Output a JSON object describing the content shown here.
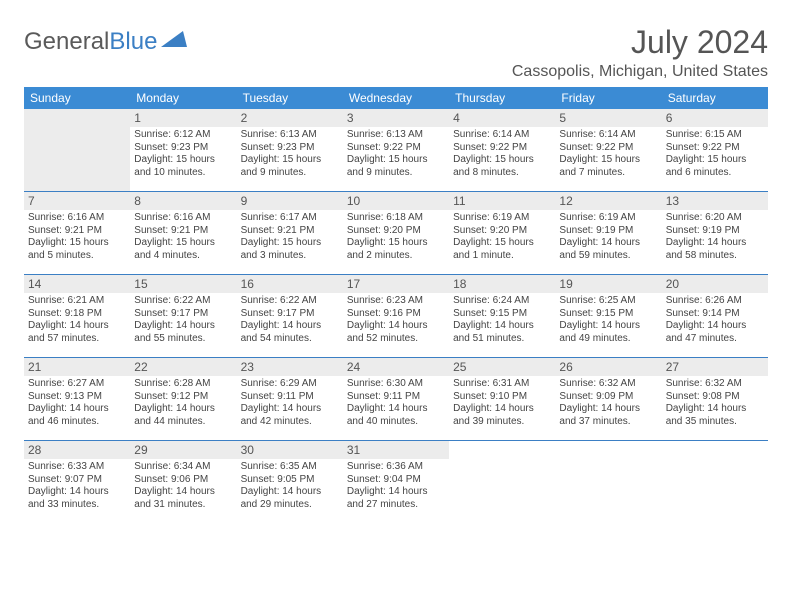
{
  "logo": {
    "word1": "General",
    "word2": "Blue"
  },
  "title": "July 2024",
  "location": "Cassopolis, Michigan, United States",
  "day_names": [
    "Sunday",
    "Monday",
    "Tuesday",
    "Wednesday",
    "Thursday",
    "Friday",
    "Saturday"
  ],
  "colors": {
    "header_bg": "#3b8bd4",
    "rule": "#3b7fc4",
    "daynum_bg": "#ececec",
    "text": "#444444"
  },
  "weeks": [
    [
      {
        "blank": true,
        "lead": true
      },
      {
        "day": "1",
        "sunrise": "Sunrise: 6:12 AM",
        "sunset": "Sunset: 9:23 PM",
        "daylight1": "Daylight: 15 hours",
        "daylight2": "and 10 minutes."
      },
      {
        "day": "2",
        "sunrise": "Sunrise: 6:13 AM",
        "sunset": "Sunset: 9:23 PM",
        "daylight1": "Daylight: 15 hours",
        "daylight2": "and 9 minutes."
      },
      {
        "day": "3",
        "sunrise": "Sunrise: 6:13 AM",
        "sunset": "Sunset: 9:22 PM",
        "daylight1": "Daylight: 15 hours",
        "daylight2": "and 9 minutes."
      },
      {
        "day": "4",
        "sunrise": "Sunrise: 6:14 AM",
        "sunset": "Sunset: 9:22 PM",
        "daylight1": "Daylight: 15 hours",
        "daylight2": "and 8 minutes."
      },
      {
        "day": "5",
        "sunrise": "Sunrise: 6:14 AM",
        "sunset": "Sunset: 9:22 PM",
        "daylight1": "Daylight: 15 hours",
        "daylight2": "and 7 minutes."
      },
      {
        "day": "6",
        "sunrise": "Sunrise: 6:15 AM",
        "sunset": "Sunset: 9:22 PM",
        "daylight1": "Daylight: 15 hours",
        "daylight2": "and 6 minutes."
      }
    ],
    [
      {
        "day": "7",
        "sunrise": "Sunrise: 6:16 AM",
        "sunset": "Sunset: 9:21 PM",
        "daylight1": "Daylight: 15 hours",
        "daylight2": "and 5 minutes."
      },
      {
        "day": "8",
        "sunrise": "Sunrise: 6:16 AM",
        "sunset": "Sunset: 9:21 PM",
        "daylight1": "Daylight: 15 hours",
        "daylight2": "and 4 minutes."
      },
      {
        "day": "9",
        "sunrise": "Sunrise: 6:17 AM",
        "sunset": "Sunset: 9:21 PM",
        "daylight1": "Daylight: 15 hours",
        "daylight2": "and 3 minutes."
      },
      {
        "day": "10",
        "sunrise": "Sunrise: 6:18 AM",
        "sunset": "Sunset: 9:20 PM",
        "daylight1": "Daylight: 15 hours",
        "daylight2": "and 2 minutes."
      },
      {
        "day": "11",
        "sunrise": "Sunrise: 6:19 AM",
        "sunset": "Sunset: 9:20 PM",
        "daylight1": "Daylight: 15 hours",
        "daylight2": "and 1 minute."
      },
      {
        "day": "12",
        "sunrise": "Sunrise: 6:19 AM",
        "sunset": "Sunset: 9:19 PM",
        "daylight1": "Daylight: 14 hours",
        "daylight2": "and 59 minutes."
      },
      {
        "day": "13",
        "sunrise": "Sunrise: 6:20 AM",
        "sunset": "Sunset: 9:19 PM",
        "daylight1": "Daylight: 14 hours",
        "daylight2": "and 58 minutes."
      }
    ],
    [
      {
        "day": "14",
        "sunrise": "Sunrise: 6:21 AM",
        "sunset": "Sunset: 9:18 PM",
        "daylight1": "Daylight: 14 hours",
        "daylight2": "and 57 minutes."
      },
      {
        "day": "15",
        "sunrise": "Sunrise: 6:22 AM",
        "sunset": "Sunset: 9:17 PM",
        "daylight1": "Daylight: 14 hours",
        "daylight2": "and 55 minutes."
      },
      {
        "day": "16",
        "sunrise": "Sunrise: 6:22 AM",
        "sunset": "Sunset: 9:17 PM",
        "daylight1": "Daylight: 14 hours",
        "daylight2": "and 54 minutes."
      },
      {
        "day": "17",
        "sunrise": "Sunrise: 6:23 AM",
        "sunset": "Sunset: 9:16 PM",
        "daylight1": "Daylight: 14 hours",
        "daylight2": "and 52 minutes."
      },
      {
        "day": "18",
        "sunrise": "Sunrise: 6:24 AM",
        "sunset": "Sunset: 9:15 PM",
        "daylight1": "Daylight: 14 hours",
        "daylight2": "and 51 minutes."
      },
      {
        "day": "19",
        "sunrise": "Sunrise: 6:25 AM",
        "sunset": "Sunset: 9:15 PM",
        "daylight1": "Daylight: 14 hours",
        "daylight2": "and 49 minutes."
      },
      {
        "day": "20",
        "sunrise": "Sunrise: 6:26 AM",
        "sunset": "Sunset: 9:14 PM",
        "daylight1": "Daylight: 14 hours",
        "daylight2": "and 47 minutes."
      }
    ],
    [
      {
        "day": "21",
        "sunrise": "Sunrise: 6:27 AM",
        "sunset": "Sunset: 9:13 PM",
        "daylight1": "Daylight: 14 hours",
        "daylight2": "and 46 minutes."
      },
      {
        "day": "22",
        "sunrise": "Sunrise: 6:28 AM",
        "sunset": "Sunset: 9:12 PM",
        "daylight1": "Daylight: 14 hours",
        "daylight2": "and 44 minutes."
      },
      {
        "day": "23",
        "sunrise": "Sunrise: 6:29 AM",
        "sunset": "Sunset: 9:11 PM",
        "daylight1": "Daylight: 14 hours",
        "daylight2": "and 42 minutes."
      },
      {
        "day": "24",
        "sunrise": "Sunrise: 6:30 AM",
        "sunset": "Sunset: 9:11 PM",
        "daylight1": "Daylight: 14 hours",
        "daylight2": "and 40 minutes."
      },
      {
        "day": "25",
        "sunrise": "Sunrise: 6:31 AM",
        "sunset": "Sunset: 9:10 PM",
        "daylight1": "Daylight: 14 hours",
        "daylight2": "and 39 minutes."
      },
      {
        "day": "26",
        "sunrise": "Sunrise: 6:32 AM",
        "sunset": "Sunset: 9:09 PM",
        "daylight1": "Daylight: 14 hours",
        "daylight2": "and 37 minutes."
      },
      {
        "day": "27",
        "sunrise": "Sunrise: 6:32 AM",
        "sunset": "Sunset: 9:08 PM",
        "daylight1": "Daylight: 14 hours",
        "daylight2": "and 35 minutes."
      }
    ],
    [
      {
        "day": "28",
        "sunrise": "Sunrise: 6:33 AM",
        "sunset": "Sunset: 9:07 PM",
        "daylight1": "Daylight: 14 hours",
        "daylight2": "and 33 minutes."
      },
      {
        "day": "29",
        "sunrise": "Sunrise: 6:34 AM",
        "sunset": "Sunset: 9:06 PM",
        "daylight1": "Daylight: 14 hours",
        "daylight2": "and 31 minutes."
      },
      {
        "day": "30",
        "sunrise": "Sunrise: 6:35 AM",
        "sunset": "Sunset: 9:05 PM",
        "daylight1": "Daylight: 14 hours",
        "daylight2": "and 29 minutes."
      },
      {
        "day": "31",
        "sunrise": "Sunrise: 6:36 AM",
        "sunset": "Sunset: 9:04 PM",
        "daylight1": "Daylight: 14 hours",
        "daylight2": "and 27 minutes."
      },
      {
        "blank": true
      },
      {
        "blank": true
      },
      {
        "blank": true
      }
    ]
  ]
}
